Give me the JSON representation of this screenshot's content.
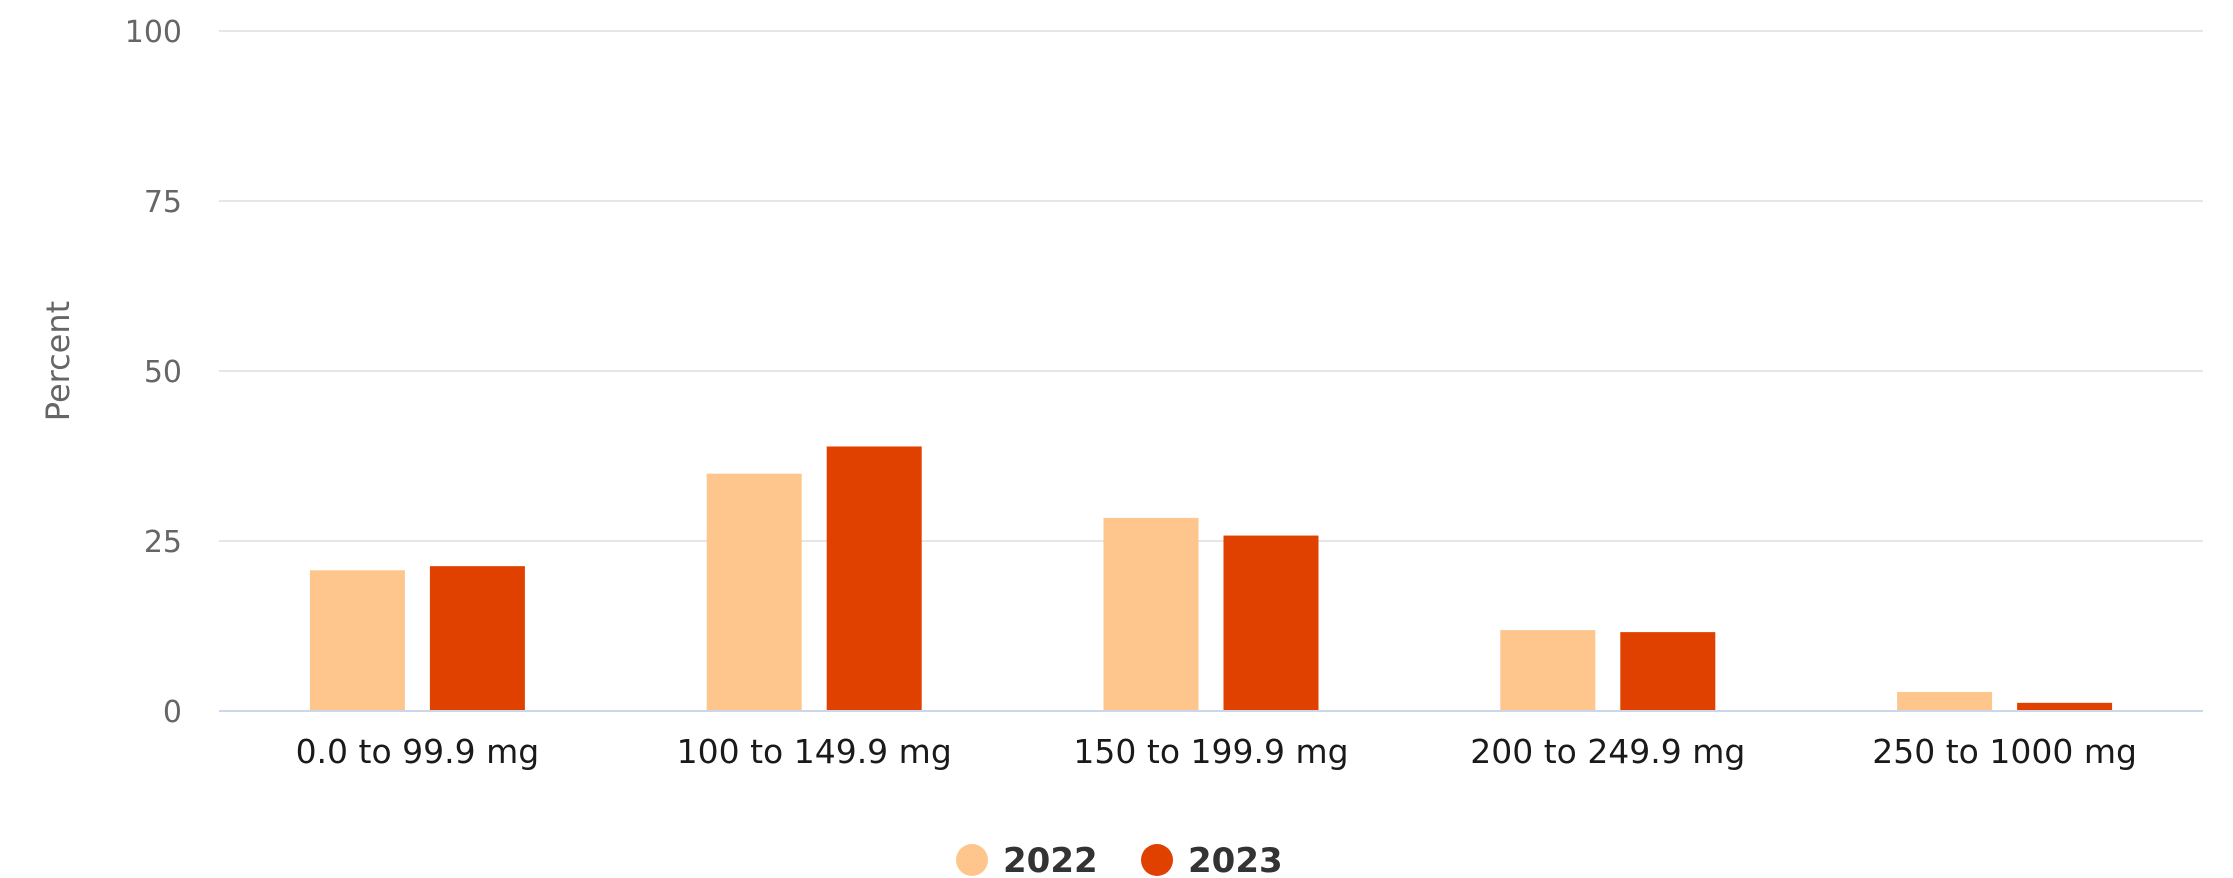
{
  "chart_data": {
    "type": "bar",
    "title": "",
    "xlabel": "",
    "ylabel": "Percent",
    "ylim": [
      0,
      100
    ],
    "yticks": [
      0,
      25,
      50,
      75,
      100
    ],
    "grid": true,
    "legend_position": "bottom-center",
    "categories": [
      "0.0 to 99.9 mg",
      "100 to 149.9 mg",
      "150 to 199.9 mg",
      "200 to 249.9 mg",
      "250 to 1000 mg"
    ],
    "series": [
      {
        "name": "2022",
        "color": "#fec68d",
        "values": [
          20.7,
          34.9,
          28.4,
          11.9,
          2.8
        ]
      },
      {
        "name": "2023",
        "color": "#e04100",
        "values": [
          21.3,
          38.9,
          25.8,
          11.6,
          1.2
        ]
      }
    ]
  }
}
